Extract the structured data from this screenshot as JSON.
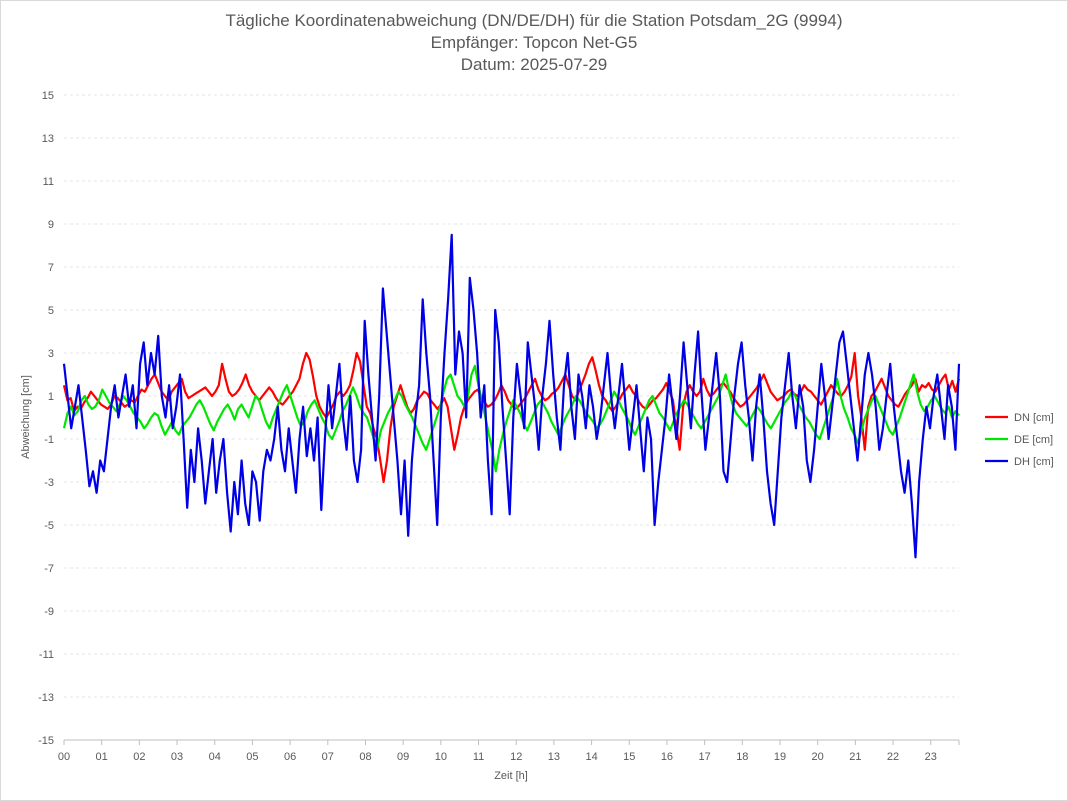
{
  "chart_data": {
    "type": "line",
    "title": "Tägliche Koordinatenabweichung (DN/DE/DH) für die Station Potsdam_2G (9994)",
    "subtitle_1": "Empfänger: Topcon Net-G5",
    "subtitle_2": "Datum: 2025-07-29",
    "xlabel": "Zeit [h]",
    "ylabel": "Abweichung [cm]",
    "xlim": [
      0,
      23.75
    ],
    "ylim": [
      -15,
      15
    ],
    "x_ticks": [
      "00",
      "01",
      "02",
      "03",
      "04",
      "05",
      "06",
      "07",
      "08",
      "09",
      "10",
      "11",
      "12",
      "13",
      "14",
      "15",
      "16",
      "17",
      "18",
      "19",
      "20",
      "21",
      "22",
      "23"
    ],
    "y_ticks": [
      15,
      13,
      11,
      9,
      7,
      5,
      3,
      1,
      -1,
      -3,
      -5,
      -7,
      -9,
      -11,
      -13,
      -15
    ],
    "grid": true,
    "legend_position": "right",
    "sample_interval_h": 0.0833,
    "series": [
      {
        "name": "DN [cm]",
        "color": "#ff0000",
        "values": [
          1.5,
          0.8,
          0.9,
          0.3,
          0.5,
          0.4,
          0.7,
          0.9,
          1.2,
          1.0,
          0.8,
          0.6,
          0.5,
          0.4,
          0.6,
          1.0,
          0.9,
          0.7,
          0.5,
          0.6,
          0.8,
          0.7,
          1.0,
          1.3,
          1.2,
          1.5,
          1.8,
          2.0,
          1.6,
          1.2,
          1.0,
          0.8,
          1.2,
          1.4,
          1.6,
          1.8,
          1.2,
          0.9,
          1.0,
          1.1,
          1.2,
          1.3,
          1.4,
          1.2,
          1.0,
          1.2,
          1.5,
          2.5,
          1.8,
          1.2,
          1.0,
          1.1,
          1.3,
          1.6,
          2.0,
          1.5,
          1.2,
          1.0,
          0.8,
          1.0,
          1.2,
          1.4,
          1.2,
          0.9,
          0.7,
          0.6,
          0.8,
          1.0,
          1.2,
          1.5,
          1.8,
          2.5,
          3.0,
          2.7,
          1.9,
          1.0,
          0.5,
          0.2,
          0.0,
          0.3,
          0.6,
          1.0,
          1.2,
          1.0,
          1.2,
          1.5,
          2.2,
          3.0,
          2.6,
          1.5,
          0.5,
          0.2,
          -0.5,
          -1.0,
          -2.0,
          -3.0,
          -2.0,
          -0.5,
          0.5,
          1.0,
          1.5,
          1.0,
          0.5,
          0.2,
          0.4,
          0.8,
          1.0,
          1.2,
          1.1,
          0.8,
          0.6,
          0.4,
          0.6,
          0.9,
          0.5,
          -0.5,
          -1.5,
          -0.8,
          0.0,
          0.5,
          0.8,
          1.0,
          1.2,
          1.3,
          0.9,
          0.7,
          0.5,
          0.6,
          0.8,
          1.1,
          1.5,
          1.2,
          0.8,
          0.6,
          0.4,
          0.5,
          0.7,
          0.9,
          1.2,
          1.5,
          1.8,
          1.3,
          1.0,
          0.8,
          0.9,
          1.1,
          1.2,
          1.4,
          1.7,
          2.0,
          1.5,
          1.0,
          0.8,
          1.2,
          1.6,
          2.0,
          2.5,
          2.8,
          2.2,
          1.5,
          1.0,
          0.8,
          0.5,
          0.3,
          0.5,
          0.8,
          1.1,
          1.3,
          1.5,
          1.2,
          1.0,
          0.7,
          0.5,
          0.4,
          0.6,
          0.8,
          0.9,
          1.1,
          1.3,
          1.6,
          1.2,
          0.8,
          -0.5,
          -1.5,
          0.5,
          1.2,
          1.5,
          1.2,
          1.0,
          1.2,
          1.8,
          1.3,
          1.0,
          1.1,
          1.3,
          1.5,
          1.6,
          1.4,
          1.2,
          0.9,
          0.7,
          0.5,
          0.6,
          0.8,
          1.0,
          1.2,
          1.4,
          1.7,
          2.0,
          1.6,
          1.2,
          1.0,
          0.8,
          0.9,
          1.0,
          1.2,
          1.3,
          1.1,
          1.0,
          1.2,
          1.5,
          1.3,
          1.2,
          1.0,
          0.8,
          0.6,
          0.9,
          1.2,
          1.5,
          1.3,
          1.1,
          1.0,
          1.2,
          1.5,
          1.9,
          3.0,
          1.0,
          0.0,
          -1.5,
          0.5,
          1.0,
          1.2,
          1.5,
          1.8,
          1.4,
          1.0,
          0.8,
          0.6,
          0.5,
          0.8,
          1.1,
          1.3,
          1.5,
          1.8,
          1.2,
          1.5,
          1.4,
          1.6,
          1.3,
          1.2,
          1.5,
          1.8,
          2.0,
          1.3,
          1.7,
          1.2,
          1.8
        ]
      },
      {
        "name": "DE [cm]",
        "color": "#00e600",
        "values": [
          -0.5,
          0.2,
          0.5,
          0.1,
          0.3,
          0.8,
          1.0,
          0.6,
          0.4,
          0.5,
          0.8,
          1.3,
          1.0,
          0.7,
          0.5,
          0.3,
          0.6,
          1.0,
          0.8,
          0.5,
          0.2,
          0.0,
          -0.2,
          -0.5,
          -0.3,
          0.0,
          0.2,
          0.1,
          -0.4,
          -0.8,
          -0.5,
          -0.2,
          -0.6,
          -0.8,
          -0.4,
          -0.2,
          0.0,
          0.3,
          0.6,
          0.8,
          0.5,
          0.1,
          -0.3,
          -0.6,
          -0.2,
          0.1,
          0.4,
          0.6,
          0.3,
          -0.1,
          0.4,
          0.6,
          0.3,
          0.0,
          0.5,
          1.0,
          0.8,
          0.3,
          -0.2,
          -0.5,
          0.0,
          0.4,
          0.8,
          1.2,
          1.5,
          1.0,
          0.5,
          0.0,
          -0.4,
          -0.2,
          0.3,
          0.6,
          0.8,
          0.4,
          0.0,
          -0.3,
          -0.8,
          -1.0,
          -0.6,
          -0.2,
          0.3,
          0.6,
          1.0,
          1.4,
          1.0,
          0.5,
          0.2,
          0.0,
          -0.5,
          -1.0,
          -1.4,
          -0.6,
          -0.2,
          0.2,
          0.5,
          0.8,
          1.2,
          1.0,
          0.6,
          0.3,
          0.0,
          -0.4,
          -0.8,
          -1.2,
          -1.5,
          -1.0,
          -0.5,
          0.0,
          0.5,
          1.2,
          1.8,
          2.0,
          1.5,
          1.0,
          0.8,
          0.5,
          1.0,
          2.0,
          2.4,
          1.5,
          0.8,
          0.0,
          -0.8,
          -1.5,
          -2.5,
          -1.5,
          -0.8,
          -0.2,
          0.3,
          0.8,
          0.5,
          0.2,
          -0.3,
          -0.6,
          -0.2,
          0.2,
          0.6,
          0.8,
          0.5,
          0.2,
          -0.2,
          -0.5,
          -0.8,
          -0.4,
          0.0,
          0.3,
          0.6,
          1.0,
          0.8,
          0.5,
          0.2,
          0.0,
          -0.2,
          -0.5,
          -0.3,
          0.0,
          0.4,
          0.8,
          1.2,
          0.9,
          0.5,
          0.2,
          -0.1,
          -0.5,
          -0.8,
          -0.4,
          0.0,
          0.4,
          0.8,
          1.0,
          0.6,
          0.2,
          0.0,
          -0.3,
          -0.6,
          -0.2,
          0.2,
          0.5,
          0.8,
          0.6,
          0.3,
          0.0,
          -0.3,
          -0.5,
          -0.2,
          0.1,
          0.4,
          0.7,
          1.0,
          1.5,
          2.0,
          1.2,
          0.6,
          0.2,
          0.0,
          -0.2,
          -0.4,
          -0.1,
          0.2,
          0.5,
          0.3,
          0.0,
          -0.3,
          -0.5,
          -0.2,
          0.1,
          0.4,
          0.7,
          0.9,
          1.2,
          1.0,
          0.6,
          0.3,
          0.0,
          -0.2,
          -0.5,
          -0.8,
          -1.0,
          -0.5,
          0.0,
          0.5,
          1.0,
          1.8,
          1.0,
          0.4,
          0.0,
          -0.5,
          -0.8,
          -1.2,
          -0.6,
          0.0,
          0.4,
          0.8,
          1.0,
          0.6,
          0.2,
          -0.2,
          -0.6,
          -0.8,
          -0.4,
          0.0,
          0.5,
          1.0,
          1.5,
          2.0,
          1.2,
          0.6,
          0.3,
          0.5,
          0.8,
          1.0,
          0.7,
          0.4,
          0.2,
          0.5,
          0.0,
          0.3,
          0.1
        ]
      },
      {
        "name": "DH [cm]",
        "color": "#0000e6",
        "values": [
          2.5,
          1.0,
          -0.5,
          0.5,
          1.5,
          0.0,
          -1.5,
          -3.2,
          -2.5,
          -3.5,
          -2.0,
          -2.5,
          -1.0,
          0.5,
          1.5,
          0.0,
          1.0,
          2.0,
          0.5,
          1.5,
          -0.5,
          2.5,
          3.5,
          1.5,
          3.0,
          2.0,
          3.8,
          1.0,
          0.0,
          1.5,
          -0.5,
          0.5,
          2.0,
          -1.0,
          -4.2,
          -1.5,
          -3.0,
          -0.5,
          -2.0,
          -4.0,
          -2.5,
          -1.0,
          -3.5,
          -2.0,
          -1.0,
          -3.5,
          -5.3,
          -3.0,
          -4.5,
          -2.0,
          -4.0,
          -5.0,
          -2.5,
          -3.0,
          -4.8,
          -2.5,
          -1.5,
          -2.0,
          -1.0,
          0.5,
          -1.5,
          -2.5,
          -0.5,
          -2.0,
          -3.5,
          -1.0,
          0.5,
          -1.8,
          -0.5,
          -2.0,
          0.0,
          -4.3,
          -1.0,
          1.5,
          -0.5,
          1.0,
          2.5,
          0.0,
          -1.5,
          1.0,
          -2.0,
          -3.0,
          -1.5,
          4.5,
          2.0,
          0.0,
          -2.0,
          1.0,
          6.0,
          4.0,
          2.0,
          0.0,
          -2.0,
          -4.5,
          -2.0,
          -5.5,
          -2.0,
          0.0,
          1.5,
          5.5,
          3.0,
          1.0,
          -2.0,
          -5.0,
          0.0,
          3.0,
          5.5,
          8.5,
          2.0,
          4.0,
          3.0,
          0.0,
          6.5,
          5.0,
          3.0,
          0.0,
          1.5,
          -2.0,
          -4.5,
          5.0,
          3.5,
          0.5,
          -2.0,
          -4.5,
          0.0,
          2.5,
          1.0,
          -0.5,
          3.5,
          2.0,
          0.5,
          -1.5,
          1.0,
          2.5,
          4.5,
          2.0,
          0.0,
          -1.5,
          1.5,
          3.0,
          0.5,
          -1.0,
          2.0,
          1.0,
          -0.5,
          1.5,
          0.5,
          -1.0,
          0.0,
          1.5,
          3.0,
          1.0,
          -0.5,
          1.0,
          2.5,
          0.5,
          -1.5,
          0.0,
          1.5,
          -0.5,
          -2.5,
          0.0,
          -1.0,
          -5.0,
          -3.0,
          -1.5,
          0.0,
          2.0,
          0.5,
          -1.0,
          1.0,
          3.5,
          1.5,
          -0.5,
          2.0,
          4.0,
          1.0,
          -1.5,
          0.0,
          1.5,
          3.0,
          1.0,
          -2.5,
          -3.0,
          -1.0,
          1.0,
          2.5,
          3.5,
          1.5,
          0.0,
          -2.0,
          0.5,
          2.0,
          0.0,
          -2.5,
          -4.0,
          -5.0,
          -2.5,
          0.0,
          1.5,
          3.0,
          1.0,
          -0.5,
          1.5,
          0.5,
          -2.0,
          -3.0,
          -1.5,
          0.5,
          2.5,
          1.0,
          -1.0,
          0.5,
          2.0,
          3.5,
          4.0,
          2.5,
          1.0,
          -0.5,
          -2.0,
          0.0,
          2.0,
          3.0,
          2.0,
          0.5,
          -1.5,
          -0.5,
          1.0,
          2.5,
          0.5,
          -1.0,
          -2.5,
          -3.5,
          -2.0,
          -4.0,
          -6.5,
          -3.0,
          -1.0,
          0.5,
          -0.5,
          1.0,
          2.0,
          0.5,
          -1.0,
          1.5,
          0.5,
          -1.5,
          2.5
        ]
      }
    ]
  }
}
